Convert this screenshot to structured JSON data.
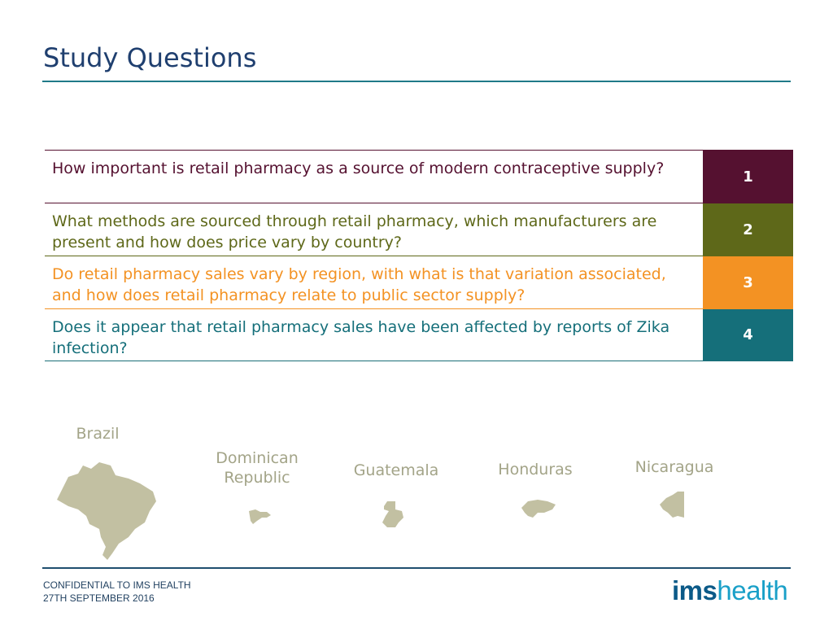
{
  "page": {
    "title": "Study Questions"
  },
  "questions": [
    {
      "number": "1",
      "text": "How important is retail pharmacy as a source of modern contraceptive supply?",
      "color": "#551130"
    },
    {
      "number": "2",
      "text": "What methods are sourced through retail pharmacy, which manufacturers are present and how does price vary by country?",
      "color": "#5e6819"
    },
    {
      "number": "3",
      "text": "Do retail pharmacy sales vary by region, with what is that variation associated, and how does retail pharmacy relate to public sector supply?",
      "color": "#f39223"
    },
    {
      "number": "4",
      "text": "Does it appear that retail pharmacy sales have been affected by reports of Zika infection?",
      "color": "#156f7a"
    }
  ],
  "countries": [
    {
      "name": "Brazil",
      "map_icon": "brazil-map-icon"
    },
    {
      "name": "Dominican Republic",
      "map_icon": "dominican-republic-map-icon"
    },
    {
      "name": "Guatemala",
      "map_icon": "guatemala-map-icon"
    },
    {
      "name": "Honduras",
      "map_icon": "honduras-map-icon"
    },
    {
      "name": "Nicaragua",
      "map_icon": "nicaragua-map-icon"
    }
  ],
  "footer": {
    "line1": "CONFIDENTIAL TO IMS HEALTH",
    "line2": "27TH SEPTEMBER 2016",
    "logo_ims": "ims",
    "logo_health": "health"
  },
  "colors": {
    "map_fill": "#c2c0a2",
    "accent": "#1f7a88"
  }
}
